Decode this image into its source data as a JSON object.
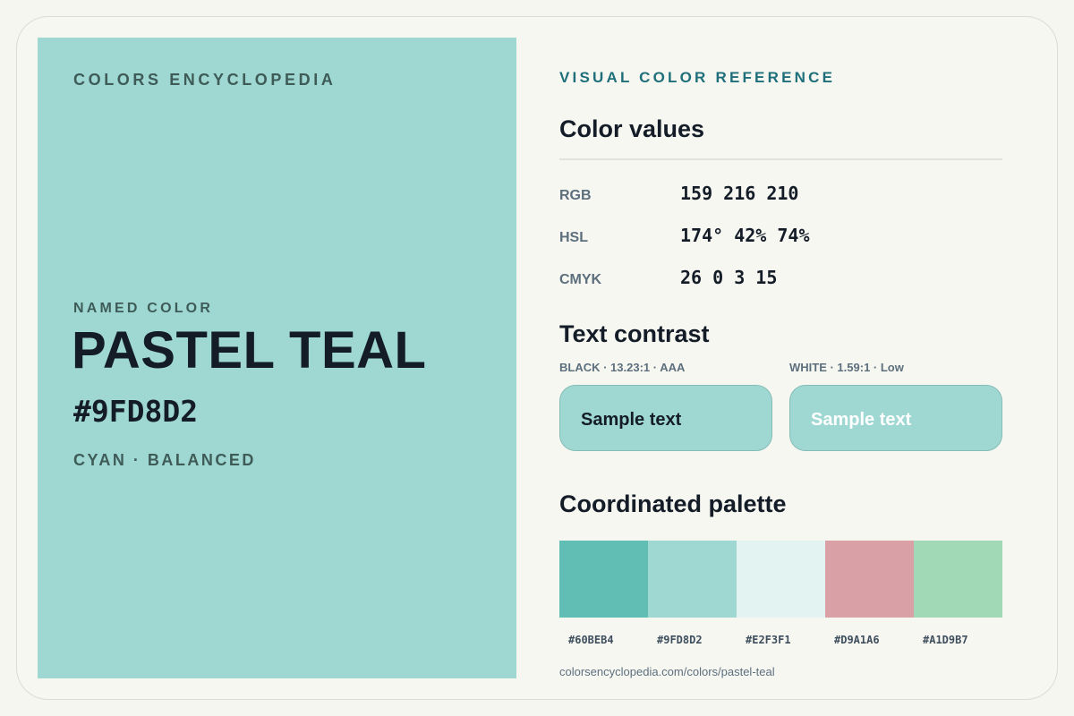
{
  "swatch": {
    "brand": "COLORS ENCYCLOPEDIA",
    "named_label": "NAMED COLOR",
    "name": "PASTEL TEAL",
    "hex": "#9FD8D2",
    "family": "CYAN · BALANCED",
    "color": "#9FD8D2"
  },
  "reference": {
    "kicker": "VISUAL COLOR REFERENCE",
    "values_title": "Color values",
    "values": [
      {
        "key": "RGB",
        "value": "159 216 210"
      },
      {
        "key": "HSL",
        "value": "174° 42% 74%"
      },
      {
        "key": "CMYK",
        "value": "26 0 3 15"
      }
    ],
    "contrast_title": "Text contrast",
    "contrast": [
      {
        "label": "BLACK · 13.23:1 · AAA",
        "sample": "Sample text",
        "text_color": "#131C27"
      },
      {
        "label": "WHITE · 1.59:1 · Low",
        "sample": "Sample text",
        "text_color": "#FFFFFF"
      }
    ],
    "palette_title": "Coordinated palette",
    "palette": [
      {
        "hex": "#60BEB4"
      },
      {
        "hex": "#9FD8D2"
      },
      {
        "hex": "#E2F3F1"
      },
      {
        "hex": "#D9A1A6"
      },
      {
        "hex": "#A1D9B7"
      }
    ],
    "url": "colorsencyclopedia.com/colors/pastel-teal"
  }
}
